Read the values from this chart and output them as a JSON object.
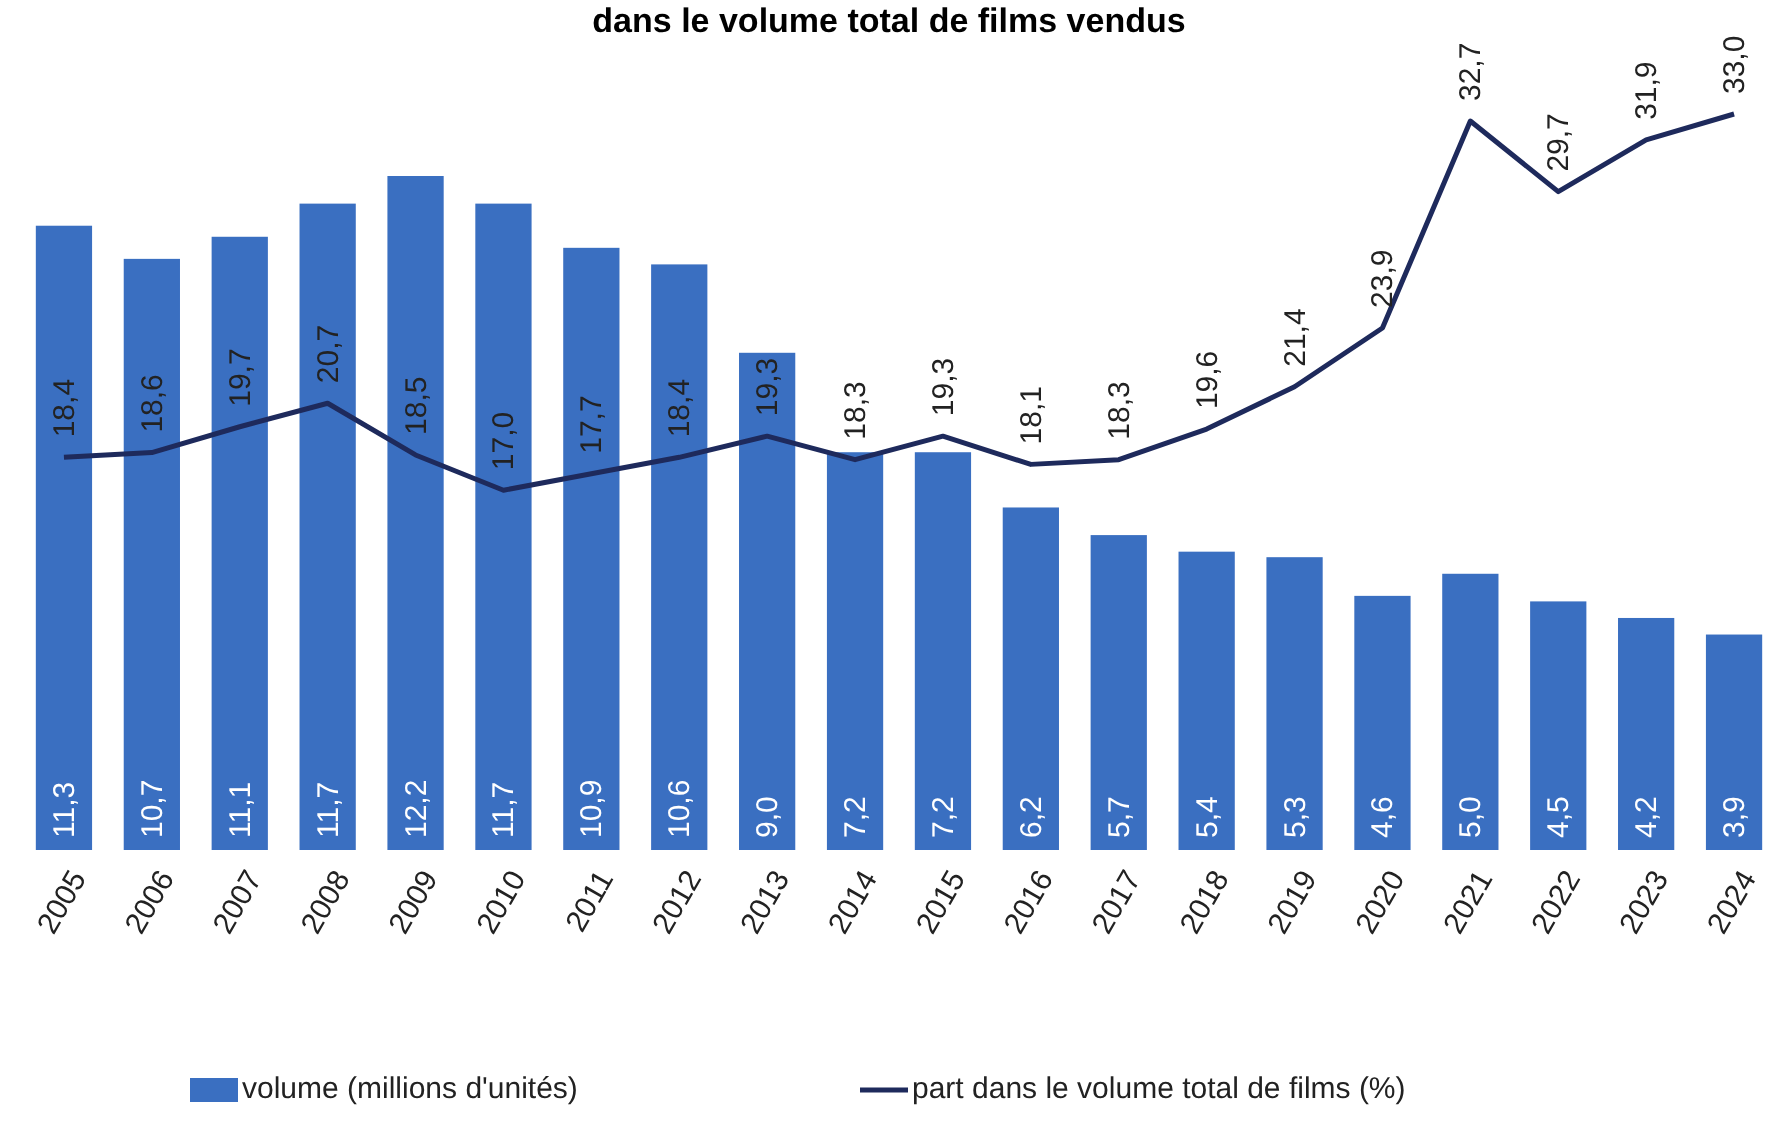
{
  "chart_data": {
    "type": "bar",
    "title": "dans le volume total de films vendus",
    "categories": [
      "2005",
      "2006",
      "2007",
      "2008",
      "2009",
      "2010",
      "2011",
      "2012",
      "2013",
      "2014",
      "2015",
      "2016",
      "2017",
      "2018",
      "2019",
      "2020",
      "2021",
      "2022",
      "2023",
      "2024"
    ],
    "series": [
      {
        "name": "volume (millions d'unités)",
        "color": "#3a6fc1",
        "values": [
          11.3,
          10.7,
          11.1,
          11.7,
          12.2,
          11.7,
          10.9,
          10.6,
          9.0,
          7.2,
          7.2,
          6.2,
          5.7,
          5.4,
          5.3,
          4.6,
          5.0,
          4.5,
          4.2,
          3.9
        ],
        "value_labels": [
          "11,3",
          "10,7",
          "11,1",
          "11,7",
          "12,2",
          "11,7",
          "10,9",
          "10,6",
          "9,0",
          "7,2",
          "7,2",
          "6,2",
          "5,7",
          "5,4",
          "5,3",
          "4,6",
          "5,0",
          "4,5",
          "4,2",
          "3,9"
        ]
      },
      {
        "name": "part dans le volume total de films (%)",
        "type": "line",
        "axis": "y2",
        "color": "#1e2a5c",
        "values": [
          18.4,
          18.6,
          19.7,
          20.7,
          18.5,
          17.0,
          17.7,
          18.4,
          19.3,
          18.3,
          19.3,
          18.1,
          18.3,
          19.6,
          21.4,
          23.9,
          32.7,
          29.7,
          31.9,
          33.0
        ],
        "value_labels": [
          "18,4",
          "18,6",
          "19,7",
          "20,7",
          "18,5",
          "17,0",
          "17,7",
          "18,4",
          "19,3",
          "18,3",
          "19,3",
          "18,1",
          "18,3",
          "19,6",
          "21,4",
          "23,9",
          "32,7",
          "29,7",
          "31,9",
          "33,0"
        ]
      }
    ],
    "legend": "bottom",
    "marker": "none",
    "line_style": "solid"
  }
}
